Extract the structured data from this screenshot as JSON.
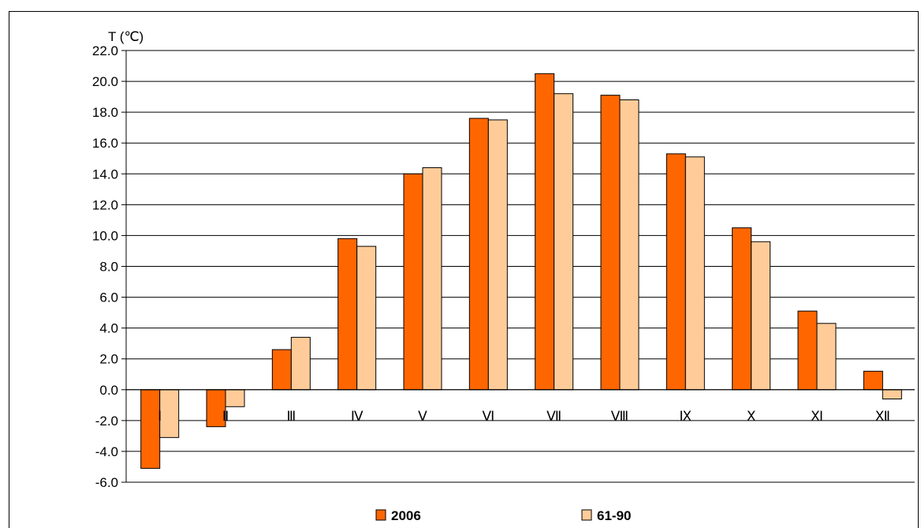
{
  "chart_data": {
    "type": "bar",
    "title": "",
    "ylabel": "T (℃)",
    "xlabel": "",
    "ylim": [
      -6.0,
      22.0
    ],
    "ytick_step": 2.0,
    "ytick_labels": [
      "-6.0",
      "-4.0",
      "-2.0",
      "0.0",
      "2.0",
      "4.0",
      "6.0",
      "8.0",
      "10.0",
      "12.0",
      "14.0",
      "16.0",
      "18.0",
      "20.0",
      "22.0"
    ],
    "categories": [
      "Ⅰ",
      "Ⅱ",
      "Ⅲ",
      "Ⅳ",
      "Ⅴ",
      "Ⅵ",
      "Ⅶ",
      "Ⅷ",
      "Ⅸ",
      "Ⅹ",
      "Ⅺ",
      "Ⅻ"
    ],
    "series": [
      {
        "name": "2006",
        "color": "#FF6600",
        "values": [
          -5.1,
          -2.4,
          2.6,
          9.8,
          14.0,
          17.6,
          20.5,
          19.1,
          15.3,
          10.5,
          5.1,
          1.2
        ]
      },
      {
        "name": "61-90",
        "color": "#FFCC99",
        "values": [
          -3.1,
          -1.1,
          3.4,
          9.3,
          14.4,
          17.5,
          19.2,
          18.8,
          15.1,
          9.6,
          4.3,
          -0.6
        ]
      }
    ],
    "grid": true,
    "legend_position": "bottom"
  }
}
